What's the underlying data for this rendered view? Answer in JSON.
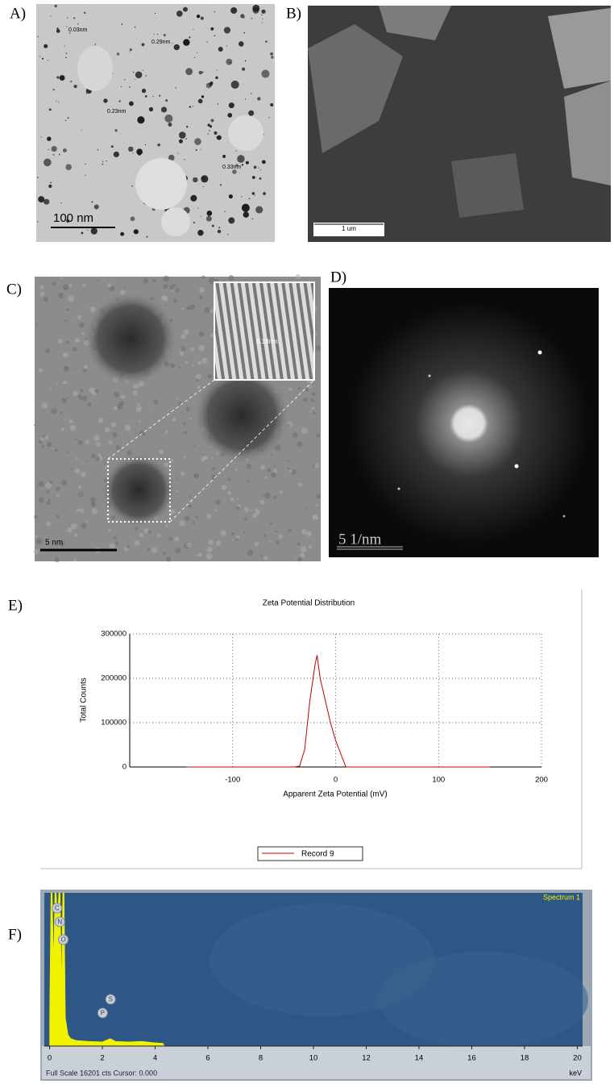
{
  "panels": {
    "a": {
      "label": "A)",
      "scale_bar": "100 nm",
      "measurements": [
        "0.03nm",
        "0.29nm",
        "0.23nm",
        "0.33nm"
      ]
    },
    "b": {
      "label": "B)",
      "scale_bar": "1 um"
    },
    "c": {
      "label": "C)",
      "scale_bar": "5 nm",
      "measurement": "0.18nm"
    },
    "d": {
      "label": "D)",
      "scale_bar": "5 1/nm"
    },
    "e": {
      "label": "E)"
    },
    "f": {
      "label": "F)"
    }
  },
  "chart_data": [
    {
      "type": "line",
      "title": "Zeta Potential Distribution",
      "x_label": "Apparent Zeta Potential (mV)",
      "y_label": "Total Counts",
      "x": [
        -145,
        -40,
        -35,
        -30,
        -25,
        -20,
        -18,
        -15,
        -10,
        -5,
        0,
        5,
        10,
        150
      ],
      "series": [
        {
          "name": "Record 9",
          "color": "#c00000",
          "values": [
            0,
            0,
            2000,
            40000,
            150000,
            230000,
            252000,
            200000,
            150000,
            100000,
            60000,
            30000,
            0,
            0
          ]
        }
      ],
      "xlim": [
        -200,
        200
      ],
      "xticks": [
        -100,
        0,
        100,
        200
      ],
      "ylim": [
        0,
        300000
      ],
      "yticks": [
        0,
        100000,
        200000,
        300000
      ],
      "grid": true
    },
    {
      "type": "area",
      "title": "Spectrum 1",
      "footer": "Full Scale 16201 cts Cursor: 0.000",
      "x_unit": "keV",
      "x": [
        0,
        0.05,
        0.1,
        0.15,
        0.2,
        0.25,
        0.3,
        0.35,
        0.4,
        0.45,
        0.5,
        0.55,
        0.6,
        0.7,
        0.8,
        1,
        1.5,
        2,
        2.3,
        2.5,
        3,
        3.5,
        4,
        4.3,
        4.35,
        20
      ],
      "series": [
        {
          "color": "#f2f200",
          "values": [
            3000,
            16201,
            16201,
            9000,
            16201,
            16201,
            14000,
            16201,
            16201,
            7000,
            16201,
            16201,
            3000,
            1200,
            800,
            600,
            500,
            450,
            800,
            500,
            450,
            500,
            350,
            300,
            0,
            0
          ]
        }
      ],
      "peaks": [
        {
          "label": "C",
          "x": 0.28
        },
        {
          "label": "N",
          "x": 0.39
        },
        {
          "label": "O",
          "x": 0.52
        },
        {
          "label": "S",
          "x": 2.31
        },
        {
          "label": "P",
          "x": 2.01
        }
      ],
      "xlim": [
        -0.2,
        20.2
      ],
      "xticks": [
        0,
        2,
        4,
        6,
        8,
        10,
        12,
        14,
        16,
        18,
        20
      ],
      "ylim": [
        0,
        16201
      ]
    }
  ]
}
